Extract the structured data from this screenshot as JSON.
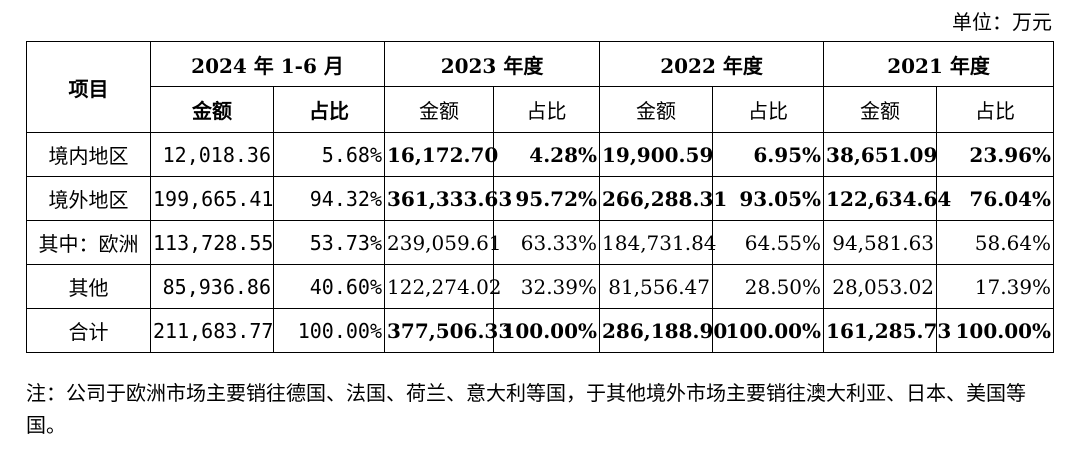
{
  "unit_label": "单位：万元",
  "header": {
    "item_label": "项目",
    "periods": [
      "2024 年 1-6 月",
      "2023 年度",
      "2022 年度",
      "2021 年度"
    ],
    "amount_label": "金额",
    "share_label": "占比"
  },
  "rows": [
    {
      "label": "境内地区",
      "values": [
        "12,018.36",
        "5.68%",
        "16,172.70",
        "4.28%",
        "19,900.59",
        "6.95%",
        "38,651.09",
        "23.96%"
      ]
    },
    {
      "label": "境外地区",
      "values": [
        "199,665.41",
        "94.32%",
        "361,333.63",
        "95.72%",
        "266,288.31",
        "93.05%",
        "122,634.64",
        "76.04%"
      ]
    },
    {
      "label": "其中：欧洲",
      "values": [
        "113,728.55",
        "53.73%",
        "239,059.61",
        "63.33%",
        "184,731.84",
        "64.55%",
        "94,581.63",
        "58.64%"
      ]
    },
    {
      "label": "其他",
      "values": [
        "85,936.86",
        "40.60%",
        "122,274.02",
        "32.39%",
        "81,556.47",
        "28.50%",
        "28,053.02",
        "17.39%"
      ]
    },
    {
      "label": "合计",
      "values": [
        "211,683.77",
        "100.00%",
        "377,506.33",
        "100.00%",
        "286,188.90",
        "100.00%",
        "161,285.73",
        "100.00%"
      ]
    }
  ],
  "note": "注：公司于欧洲市场主要销往德国、法国、荷兰、意大利等国，于其他境外市场主要销往澳大利亚、日本、美国等国。"
}
